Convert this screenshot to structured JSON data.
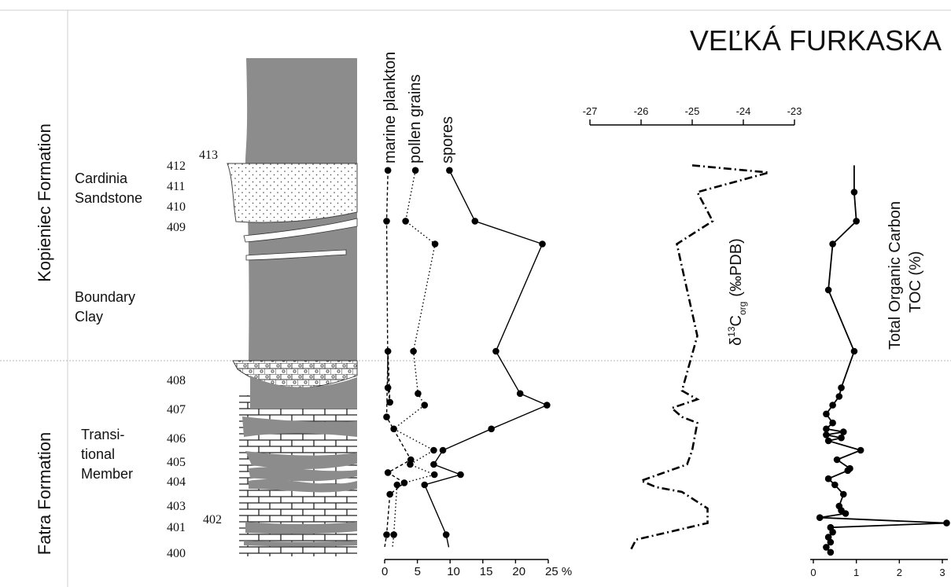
{
  "title": "VEĽKÁ FURKASKA",
  "formations": [
    {
      "name": "Kopieniec Formation",
      "members": [
        {
          "l1": "Cardinia",
          "l2": "Sandstone"
        },
        {
          "l1": "Boundary",
          "l2": "Clay"
        }
      ]
    },
    {
      "name": "Fatra Formation",
      "members": [
        {
          "l1": "Transi-",
          "l2": "tional",
          "l3": "Member"
        }
      ]
    }
  ],
  "beds": {
    "left": [
      "412",
      "411",
      "410",
      "409",
      "408",
      "407",
      "406",
      "405",
      "404",
      "403",
      "401",
      "400"
    ],
    "right": [
      "413",
      "402"
    ]
  },
  "units": {
    "delta": "(‰PDB)",
    "toc_line1": "Total Organic Carbon",
    "toc_line2": "TOC (%)"
  },
  "colors": {
    "lithology": "#8c8c8c",
    "ink": "#000000"
  },
  "chart_data": [
    {
      "type": "line",
      "name": "palynology",
      "y_axis": "stratigraphic height (bed numbers 400–413)",
      "x_ticks": [
        "0",
        "5",
        "10",
        "15",
        "20",
        "25 %"
      ],
      "xlim": [
        0,
        25
      ],
      "series": [
        {
          "name": "marine plankton",
          "style": "dashed",
          "x": [
            0.5,
            0.3,
            0.5,
            0.8,
            0.5,
            0.3,
            4.0,
            0.5,
            3.0,
            0.8,
            0.3,
            0.0
          ],
          "y": [
            411.9,
            409.4,
            407.8,
            407.3,
            408.2,
            406.8,
            405.2,
            404.6,
            404.1,
            403.6,
            400.8,
            400.3
          ]
        },
        {
          "name": "pollen grains",
          "style": "dotted",
          "x": [
            4.7,
            3.2,
            7.7,
            4.4,
            5.1,
            6.1,
            1.4,
            7.5,
            3.9,
            7.6,
            1.9,
            1.4,
            1.2
          ],
          "y": [
            411.9,
            409.4,
            408.9,
            408.2,
            407.6,
            407.2,
            406.4,
            405.6,
            405.0,
            404.5,
            404.0,
            400.8,
            400.3
          ]
        },
        {
          "name": "spores",
          "style": "solid",
          "x": [
            9.9,
            13.8,
            24.1,
            17.0,
            20.7,
            24.8,
            16.3,
            8.9,
            7.5,
            11.6,
            6.1,
            9.4,
            9.8
          ],
          "y": [
            411.9,
            409.4,
            408.9,
            408.2,
            407.6,
            407.2,
            406.4,
            405.6,
            405.0,
            404.5,
            404.0,
            400.8,
            400.3
          ]
        }
      ]
    },
    {
      "type": "line",
      "name": "delta13C_org",
      "style": "dash-dot",
      "x_ticks": [
        "-27",
        "-26",
        "-25",
        "-24",
        "-23"
      ],
      "xlim": [
        -27,
        -23
      ],
      "x": [
        -25.0,
        -23.5,
        -24.9,
        -24.6,
        -25.3,
        -24.9,
        -25.2,
        -24.9,
        -25.4,
        -25.2,
        -24.9,
        -25.0,
        -25.1,
        -26.0,
        -25.7,
        -25.2,
        -24.7,
        -24.7,
        -26.1,
        -26.2
      ],
      "y": [
        412.2,
        411.8,
        410.9,
        409.4,
        408.9,
        408.3,
        407.7,
        407.4,
        407.1,
        406.8,
        406.6,
        405.6,
        405.0,
        404.2,
        403.9,
        403.7,
        403.0,
        401.6,
        400.6,
        400.2
      ]
    },
    {
      "type": "line",
      "name": "TOC",
      "style": "solid",
      "x_ticks": [
        "0",
        "1",
        "2",
        "3"
      ],
      "xlim": [
        0,
        3
      ],
      "x": [
        0.95,
        0.95,
        1.0,
        0.45,
        0.35,
        0.95,
        0.65,
        0.6,
        0.45,
        0.3,
        0.45,
        0.3,
        0.7,
        0.3,
        0.65,
        0.35,
        1.1,
        0.55,
        0.85,
        0.8,
        0.35,
        0.5,
        0.7,
        0.6,
        0.65,
        0.75,
        0.15,
        3.1,
        0.4,
        0.45,
        0.35,
        0.4,
        0.3,
        0.4
      ],
      "y": [
        412.2,
        410.9,
        409.4,
        408.9,
        408.6,
        408.2,
        407.8,
        407.5,
        407.2,
        406.9,
        406.6,
        406.4,
        406.3,
        406.2,
        406.1,
        406.0,
        405.6,
        405.2,
        404.8,
        404.7,
        404.3,
        404.0,
        403.6,
        403.1,
        402.8,
        402.5,
        402.1,
        401.6,
        401.2,
        400.9,
        400.7,
        400.5,
        400.3,
        400.1
      ]
    }
  ]
}
